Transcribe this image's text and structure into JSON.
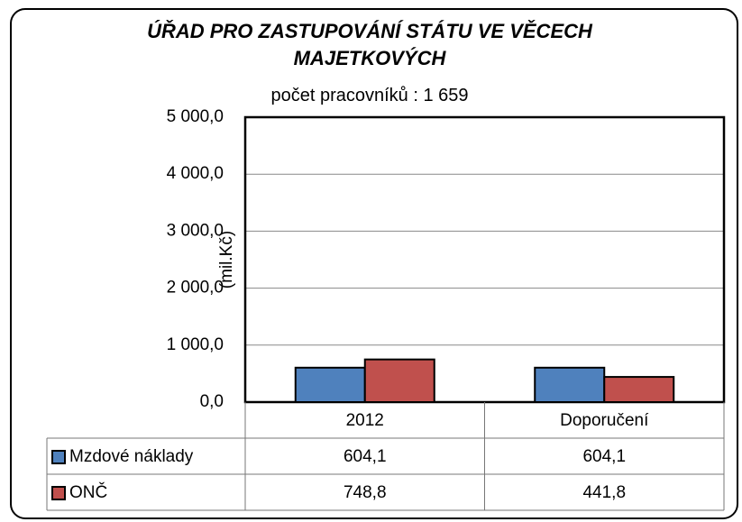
{
  "chart_data": {
    "type": "bar",
    "title": "ÚŘAD PRO ZASTUPOVÁNÍ STÁTU VE VĚCECH MAJETKOVÝCH",
    "subtitle": "počet pracovníků : 1 659",
    "y_label": "(mil.Kč)",
    "categories": [
      "2012",
      "Doporučení"
    ],
    "series": [
      {
        "name": "Mzdové náklady",
        "color": "#4f81bd",
        "values": [
          604.1,
          604.1
        ],
        "value_labels": [
          "604,1",
          "604,1"
        ]
      },
      {
        "name": "ONČ",
        "color": "#c0504d",
        "values": [
          748.8,
          441.8
        ],
        "value_labels": [
          "748,8",
          "441,8"
        ]
      }
    ],
    "ylim": [
      0,
      5000
    ],
    "yticks": [
      {
        "value": 0,
        "label": "0,0"
      },
      {
        "value": 1000,
        "label": "1 000,0"
      },
      {
        "value": 2000,
        "label": "2 000,0"
      },
      {
        "value": 3000,
        "label": "3 000,0"
      },
      {
        "value": 4000,
        "label": "4 000,0"
      },
      {
        "value": 5000,
        "label": "5 000,0"
      }
    ],
    "grid": true
  }
}
